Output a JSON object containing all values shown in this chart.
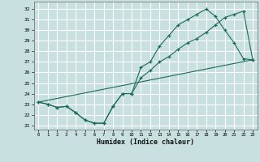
{
  "xlabel": "Humidex (Indice chaleur)",
  "xlim": [
    -0.5,
    23.5
  ],
  "ylim": [
    20.6,
    32.7
  ],
  "yticks": [
    21,
    22,
    23,
    24,
    25,
    26,
    27,
    28,
    29,
    30,
    31,
    32
  ],
  "xticks": [
    0,
    1,
    2,
    3,
    4,
    5,
    6,
    7,
    8,
    9,
    10,
    11,
    12,
    13,
    14,
    15,
    16,
    17,
    18,
    19,
    20,
    21,
    22,
    23
  ],
  "bg_color": "#c8e0e0",
  "grid_color": "#ffffff",
  "line_color": "#1a6b5a",
  "line1_x": [
    0,
    1,
    2,
    3,
    4,
    5,
    6,
    7,
    8,
    9,
    10,
    11,
    12,
    13,
    14,
    15,
    16,
    17,
    18,
    19,
    20,
    21,
    22,
    23
  ],
  "line1_y": [
    23.2,
    23.0,
    22.7,
    22.8,
    22.2,
    21.5,
    21.2,
    21.2,
    22.8,
    24.0,
    24.0,
    26.5,
    27.0,
    28.5,
    29.5,
    30.5,
    31.0,
    31.5,
    32.0,
    31.3,
    30.0,
    28.8,
    27.3,
    27.2
  ],
  "line2_x": [
    0,
    1,
    2,
    3,
    4,
    5,
    6,
    7,
    8,
    9,
    10,
    11,
    12,
    13,
    14,
    15,
    16,
    17,
    18,
    19,
    20,
    21,
    22,
    23
  ],
  "line2_y": [
    23.2,
    23.0,
    22.7,
    22.8,
    22.2,
    21.5,
    21.2,
    21.2,
    22.8,
    24.0,
    24.0,
    25.5,
    26.2,
    27.0,
    27.5,
    28.2,
    28.8,
    29.2,
    29.8,
    30.5,
    31.2,
    31.5,
    31.8,
    27.2
  ],
  "line3_x": [
    0,
    23
  ],
  "line3_y": [
    23.2,
    27.2
  ]
}
